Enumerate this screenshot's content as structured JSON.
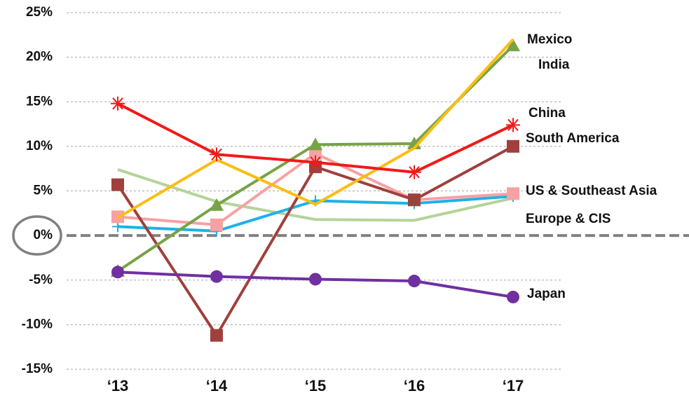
{
  "chart_data": {
    "type": "line",
    "categories": [
      "‘13",
      "‘14",
      "‘15",
      "‘16",
      "‘17"
    ],
    "ylim": [
      -15,
      25
    ],
    "yticks": [
      {
        "value": -15,
        "label": "-15%"
      },
      {
        "value": -10,
        "label": "-10%"
      },
      {
        "value": -5,
        "label": "-5%"
      },
      {
        "value": 0,
        "label": "0%"
      },
      {
        "value": 5,
        "label": "5%"
      },
      {
        "value": 10,
        "label": "10%"
      },
      {
        "value": 15,
        "label": "15%"
      },
      {
        "value": 20,
        "label": "20%"
      },
      {
        "value": 25,
        "label": "25%"
      }
    ],
    "grid": true,
    "series": [
      {
        "name": "Europe & CIS",
        "color": "#b5d39a",
        "marker": "none",
        "values": [
          7.4,
          3.8,
          1.8,
          1.7,
          4.2
        ]
      },
      {
        "name": "US & Southeast Asia",
        "color": "#1eb1e8",
        "marker": "plus",
        "values": [
          1.0,
          0.5,
          3.9,
          3.6,
          4.4
        ]
      },
      {
        "color": "#f7a1a3",
        "marker": "square",
        "values": [
          2.1,
          1.2,
          9.2,
          4.0,
          4.7
        ]
      },
      {
        "name": "South America",
        "color": "#a0403c",
        "marker": "square",
        "values": [
          5.7,
          -11.2,
          7.7,
          4.0,
          10.0
        ]
      },
      {
        "name": "India",
        "color": "#77a345",
        "marker": "triangle",
        "values": [
          -4.0,
          3.4,
          10.2,
          10.3,
          21.3
        ]
      },
      {
        "name": "Mexico",
        "color": "#fbbd13",
        "marker": "none",
        "values": [
          2.0,
          8.5,
          3.5,
          9.8,
          22.0
        ]
      },
      {
        "name": "China",
        "color": "#f01a1a",
        "marker": "asterisk",
        "values": [
          14.8,
          9.1,
          8.2,
          7.1,
          12.4
        ]
      },
      {
        "name": "Japan",
        "color": "#7030a0",
        "marker": "circle",
        "values": [
          -4.1,
          -4.6,
          -4.9,
          -5.1,
          -6.9
        ]
      }
    ]
  }
}
